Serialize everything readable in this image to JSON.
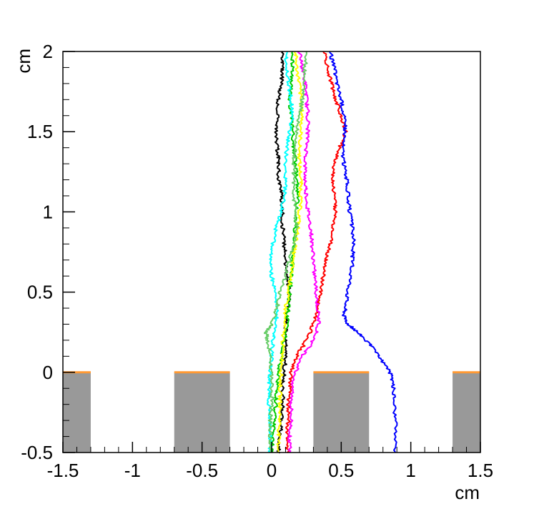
{
  "chart_data": {
    "type": "line",
    "title": "",
    "xlabel": "cm",
    "ylabel": "cm",
    "xlim": [
      -1.5,
      1.5
    ],
    "ylim": [
      -0.5,
      2
    ],
    "x_ticks": [
      -1.5,
      -1,
      -0.5,
      0,
      0.5,
      1,
      1.5
    ],
    "x_tick_labels": [
      "-1.5",
      "-1",
      "-0.5",
      "0",
      "0.5",
      "1",
      "1.5"
    ],
    "y_ticks": [
      -0.5,
      0,
      0.5,
      1,
      1.5,
      2
    ],
    "y_tick_labels": [
      "-0.5",
      "0",
      "0.5",
      "1",
      "1.5",
      "2"
    ],
    "grid": false,
    "legend": "none",
    "colors": {
      "electrode_fill": "#999999",
      "electrode_edge": "#ff9933",
      "axis": "#000000"
    },
    "electrodes": [
      {
        "x_min": -1.5,
        "x_max": -1.3,
        "y_min": -0.5,
        "y_max": 0
      },
      {
        "x_min": -0.7,
        "x_max": -0.3,
        "y_min": -0.5,
        "y_max": 0
      },
      {
        "x_min": 0.3,
        "x_max": 0.7,
        "y_min": -0.5,
        "y_max": 0
      },
      {
        "x_min": 1.3,
        "x_max": 1.5,
        "y_min": -0.5,
        "y_max": 0
      }
    ],
    "series": [
      {
        "color": "#000000",
        "points": [
          [
            0.05,
            -0.5
          ],
          [
            0.06,
            -0.4
          ],
          [
            0.07,
            -0.3
          ],
          [
            0.08,
            -0.2
          ],
          [
            0.08,
            -0.1
          ],
          [
            0.09,
            0.0
          ],
          [
            0.1,
            0.1
          ],
          [
            0.1,
            0.2
          ],
          [
            0.1,
            0.3
          ],
          [
            0.12,
            0.4
          ],
          [
            0.13,
            0.5
          ],
          [
            0.11,
            0.6
          ],
          [
            0.1,
            0.7
          ],
          [
            0.09,
            0.8
          ],
          [
            0.08,
            0.9
          ],
          [
            0.08,
            1.0
          ],
          [
            0.07,
            1.1
          ],
          [
            0.05,
            1.2
          ],
          [
            0.05,
            1.3
          ],
          [
            0.04,
            1.4
          ],
          [
            0.03,
            1.5
          ],
          [
            0.04,
            1.6
          ],
          [
            0.05,
            1.7
          ],
          [
            0.07,
            1.8
          ],
          [
            0.08,
            1.9
          ],
          [
            0.08,
            2.0
          ]
        ]
      },
      {
        "color": "#ff0000",
        "points": [
          [
            0.38,
            2.0
          ],
          [
            0.4,
            1.9
          ],
          [
            0.43,
            1.8
          ],
          [
            0.46,
            1.7
          ],
          [
            0.5,
            1.6
          ],
          [
            0.53,
            1.5
          ],
          [
            0.49,
            1.4
          ],
          [
            0.45,
            1.3
          ],
          [
            0.44,
            1.2
          ],
          [
            0.45,
            1.1
          ],
          [
            0.46,
            1.0
          ],
          [
            0.44,
            0.9
          ],
          [
            0.42,
            0.8
          ],
          [
            0.39,
            0.7
          ],
          [
            0.37,
            0.6
          ],
          [
            0.35,
            0.5
          ],
          [
            0.33,
            0.4
          ],
          [
            0.3,
            0.3
          ],
          [
            0.25,
            0.2
          ],
          [
            0.18,
            0.1
          ],
          [
            0.14,
            0.0
          ],
          [
            0.13,
            -0.1
          ],
          [
            0.12,
            -0.2
          ],
          [
            0.12,
            -0.3
          ],
          [
            0.11,
            -0.4
          ],
          [
            0.11,
            -0.5
          ]
        ]
      },
      {
        "color": "#0000ff",
        "points": [
          [
            0.42,
            2.0
          ],
          [
            0.45,
            1.9
          ],
          [
            0.47,
            1.8
          ],
          [
            0.5,
            1.7
          ],
          [
            0.52,
            1.6
          ],
          [
            0.53,
            1.5
          ],
          [
            0.51,
            1.4
          ],
          [
            0.52,
            1.3
          ],
          [
            0.54,
            1.2
          ],
          [
            0.55,
            1.1
          ],
          [
            0.56,
            1.0
          ],
          [
            0.58,
            0.9
          ],
          [
            0.59,
            0.8
          ],
          [
            0.58,
            0.7
          ],
          [
            0.57,
            0.6
          ],
          [
            0.55,
            0.5
          ],
          [
            0.53,
            0.4
          ],
          [
            0.52,
            0.35
          ],
          [
            0.55,
            0.3
          ],
          [
            0.62,
            0.25
          ],
          [
            0.7,
            0.18
          ],
          [
            0.77,
            0.1
          ],
          [
            0.84,
            0.02
          ],
          [
            0.87,
            -0.05
          ],
          [
            0.88,
            -0.15
          ],
          [
            0.89,
            -0.3
          ],
          [
            0.89,
            -0.5
          ]
        ]
      },
      {
        "color": "#00cc00",
        "points": [
          [
            0.0,
            -0.5
          ],
          [
            0.01,
            -0.4
          ],
          [
            0.02,
            -0.3
          ],
          [
            0.03,
            -0.2
          ],
          [
            0.04,
            -0.1
          ],
          [
            0.05,
            0.0
          ],
          [
            0.07,
            0.1
          ],
          [
            0.09,
            0.2
          ],
          [
            0.11,
            0.3
          ],
          [
            0.12,
            0.4
          ],
          [
            0.13,
            0.5
          ],
          [
            0.14,
            0.6
          ],
          [
            0.15,
            0.7
          ],
          [
            0.16,
            0.8
          ],
          [
            0.17,
            0.9
          ],
          [
            0.18,
            1.0
          ],
          [
            0.19,
            1.1
          ],
          [
            0.18,
            1.2
          ],
          [
            0.17,
            1.3
          ],
          [
            0.16,
            1.4
          ],
          [
            0.15,
            1.5
          ],
          [
            0.14,
            1.6
          ],
          [
            0.13,
            1.7
          ],
          [
            0.14,
            1.8
          ],
          [
            0.15,
            1.9
          ],
          [
            0.15,
            2.0
          ]
        ]
      },
      {
        "color": "#00ffff",
        "points": [
          [
            0.1,
            2.0
          ],
          [
            0.11,
            1.9
          ],
          [
            0.12,
            1.8
          ],
          [
            0.14,
            1.7
          ],
          [
            0.15,
            1.6
          ],
          [
            0.13,
            1.5
          ],
          [
            0.11,
            1.4
          ],
          [
            0.1,
            1.3
          ],
          [
            0.1,
            1.2
          ],
          [
            0.09,
            1.1
          ],
          [
            0.07,
            1.0
          ],
          [
            0.03,
            0.9
          ],
          [
            0.01,
            0.8
          ],
          [
            -0.01,
            0.7
          ],
          [
            0.0,
            0.6
          ],
          [
            0.03,
            0.5
          ],
          [
            0.04,
            0.4
          ],
          [
            0.03,
            0.3
          ],
          [
            0.01,
            0.2
          ],
          [
            0.0,
            0.1
          ],
          [
            -0.01,
            0.0
          ],
          [
            -0.02,
            -0.1
          ],
          [
            -0.02,
            -0.2
          ],
          [
            -0.01,
            -0.3
          ],
          [
            -0.01,
            -0.4
          ],
          [
            -0.01,
            -0.5
          ]
        ]
      },
      {
        "color": "#ff00ff",
        "points": [
          [
            0.2,
            2.0
          ],
          [
            0.22,
            1.9
          ],
          [
            0.24,
            1.8
          ],
          [
            0.25,
            1.7
          ],
          [
            0.26,
            1.6
          ],
          [
            0.26,
            1.5
          ],
          [
            0.25,
            1.4
          ],
          [
            0.24,
            1.3
          ],
          [
            0.24,
            1.2
          ],
          [
            0.25,
            1.1
          ],
          [
            0.26,
            1.0
          ],
          [
            0.28,
            0.9
          ],
          [
            0.29,
            0.8
          ],
          [
            0.3,
            0.7
          ],
          [
            0.31,
            0.6
          ],
          [
            0.32,
            0.5
          ],
          [
            0.33,
            0.4
          ],
          [
            0.34,
            0.3
          ],
          [
            0.3,
            0.2
          ],
          [
            0.22,
            0.1
          ],
          [
            0.17,
            0.0
          ],
          [
            0.15,
            -0.1
          ],
          [
            0.14,
            -0.2
          ],
          [
            0.14,
            -0.3
          ],
          [
            0.13,
            -0.4
          ],
          [
            0.13,
            -0.5
          ]
        ]
      },
      {
        "color": "#ffff00",
        "points": [
          [
            0.17,
            2.0
          ],
          [
            0.18,
            1.9
          ],
          [
            0.2,
            1.8
          ],
          [
            0.21,
            1.7
          ],
          [
            0.22,
            1.6
          ],
          [
            0.21,
            1.5
          ],
          [
            0.2,
            1.4
          ],
          [
            0.2,
            1.3
          ],
          [
            0.21,
            1.2
          ],
          [
            0.21,
            1.1
          ],
          [
            0.2,
            1.0
          ],
          [
            0.19,
            0.9
          ],
          [
            0.17,
            0.8
          ],
          [
            0.15,
            0.7
          ],
          [
            0.14,
            0.6
          ],
          [
            0.12,
            0.5
          ],
          [
            0.1,
            0.4
          ],
          [
            0.09,
            0.3
          ],
          [
            0.08,
            0.2
          ],
          [
            0.08,
            0.1
          ],
          [
            0.07,
            0.0
          ],
          [
            0.06,
            -0.1
          ],
          [
            0.06,
            -0.2
          ],
          [
            0.06,
            -0.3
          ],
          [
            0.05,
            -0.4
          ],
          [
            0.05,
            -0.5
          ]
        ]
      },
      {
        "color": "#66cc66",
        "points": [
          [
            0.25,
            2.0
          ],
          [
            0.24,
            1.9
          ],
          [
            0.23,
            1.8
          ],
          [
            0.22,
            1.7
          ],
          [
            0.2,
            1.6
          ],
          [
            0.18,
            1.5
          ],
          [
            0.17,
            1.4
          ],
          [
            0.16,
            1.3
          ],
          [
            0.16,
            1.2
          ],
          [
            0.16,
            1.1
          ],
          [
            0.17,
            1.0
          ],
          [
            0.18,
            0.9
          ],
          [
            0.16,
            0.8
          ],
          [
            0.13,
            0.7
          ],
          [
            0.1,
            0.6
          ],
          [
            0.06,
            0.5
          ],
          [
            0.04,
            0.4
          ],
          [
            0.0,
            0.3
          ],
          [
            -0.04,
            0.25
          ],
          [
            -0.03,
            0.2
          ],
          [
            -0.01,
            0.1
          ],
          [
            0.0,
            0.0
          ],
          [
            0.0,
            -0.1
          ],
          [
            0.0,
            -0.2
          ],
          [
            -0.01,
            -0.3
          ],
          [
            -0.01,
            -0.4
          ],
          [
            -0.01,
            -0.5
          ]
        ]
      }
    ]
  }
}
